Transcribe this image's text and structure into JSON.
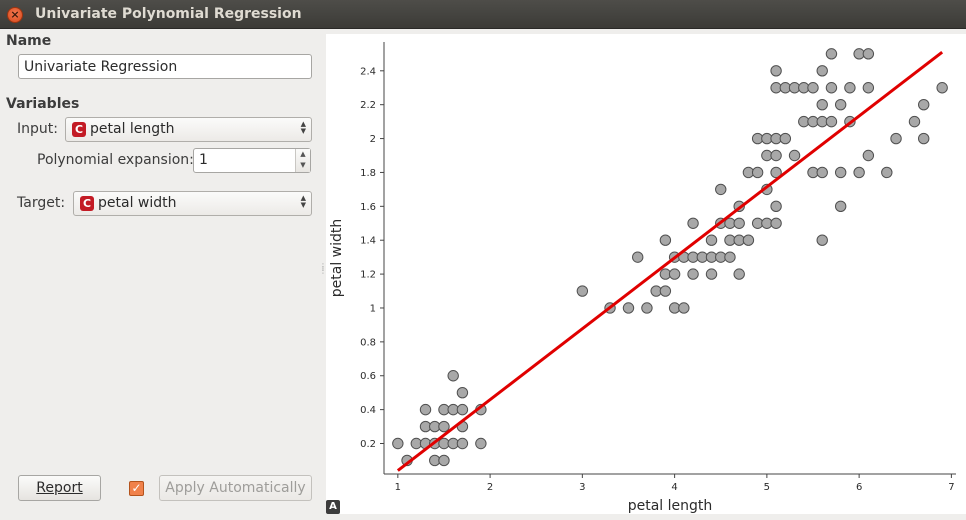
{
  "window": {
    "title": "Univariate Polynomial Regression"
  },
  "name_section": {
    "heading": "Name",
    "value": "Univariate Regression"
  },
  "variables_section": {
    "heading": "Variables",
    "input_label": "Input:",
    "input_badge": "C",
    "input_value": "petal length",
    "poly_label": "Polynomial expansion:",
    "poly_value": "1",
    "target_label": "Target:",
    "target_badge": "C",
    "target_value": "petal width"
  },
  "footer": {
    "report_label": "Report",
    "apply_label": "Apply Automatically",
    "apply_checked": true,
    "corner_icon": "A"
  },
  "chart_data": {
    "type": "scatter",
    "xlabel": "petal length",
    "ylabel": "petal width",
    "xlim": [
      0.85,
      7.05
    ],
    "ylim": [
      0.02,
      2.57
    ],
    "xticks": [
      1,
      2,
      3,
      4,
      5,
      6,
      7
    ],
    "yticks": [
      0.2,
      0.4,
      0.6,
      0.8,
      1,
      1.2,
      1.4,
      1.6,
      1.8,
      2,
      2.2,
      2.4
    ],
    "point_color": "#a8a8a8",
    "point_stroke": "#505050",
    "line_color": "#e00000",
    "regression_line": {
      "x": [
        1.0,
        6.9
      ],
      "y": [
        0.04,
        2.51
      ]
    },
    "points": [
      [
        1.0,
        0.2
      ],
      [
        1.1,
        0.1
      ],
      [
        1.2,
        0.2
      ],
      [
        1.3,
        0.2
      ],
      [
        1.3,
        0.3
      ],
      [
        1.3,
        0.4
      ],
      [
        1.4,
        0.2
      ],
      [
        1.4,
        0.1
      ],
      [
        1.4,
        0.3
      ],
      [
        1.5,
        0.2
      ],
      [
        1.5,
        0.1
      ],
      [
        1.5,
        0.4
      ],
      [
        1.5,
        0.3
      ],
      [
        1.6,
        0.2
      ],
      [
        1.6,
        0.4
      ],
      [
        1.6,
        0.6
      ],
      [
        1.7,
        0.2
      ],
      [
        1.7,
        0.3
      ],
      [
        1.7,
        0.4
      ],
      [
        1.7,
        0.5
      ],
      [
        1.9,
        0.2
      ],
      [
        1.9,
        0.4
      ],
      [
        3.0,
        1.1
      ],
      [
        3.3,
        1.0
      ],
      [
        3.5,
        1.0
      ],
      [
        3.6,
        1.3
      ],
      [
        3.7,
        1.0
      ],
      [
        3.8,
        1.1
      ],
      [
        3.9,
        1.1
      ],
      [
        3.9,
        1.2
      ],
      [
        3.9,
        1.4
      ],
      [
        4.0,
        1.0
      ],
      [
        4.0,
        1.2
      ],
      [
        4.0,
        1.3
      ],
      [
        4.1,
        1.0
      ],
      [
        4.1,
        1.3
      ],
      [
        4.2,
        1.2
      ],
      [
        4.2,
        1.3
      ],
      [
        4.2,
        1.5
      ],
      [
        4.3,
        1.3
      ],
      [
        4.4,
        1.2
      ],
      [
        4.4,
        1.3
      ],
      [
        4.4,
        1.4
      ],
      [
        4.5,
        1.3
      ],
      [
        4.5,
        1.5
      ],
      [
        4.5,
        1.7
      ],
      [
        4.6,
        1.3
      ],
      [
        4.6,
        1.4
      ],
      [
        4.6,
        1.5
      ],
      [
        4.7,
        1.2
      ],
      [
        4.7,
        1.4
      ],
      [
        4.7,
        1.5
      ],
      [
        4.7,
        1.6
      ],
      [
        4.8,
        1.8
      ],
      [
        4.8,
        1.4
      ],
      [
        4.9,
        1.5
      ],
      [
        4.9,
        1.8
      ],
      [
        4.9,
        2.0
      ],
      [
        5.0,
        1.7
      ],
      [
        5.0,
        1.5
      ],
      [
        5.0,
        2.0
      ],
      [
        5.0,
        1.9
      ],
      [
        5.1,
        1.5
      ],
      [
        5.1,
        1.6
      ],
      [
        5.1,
        1.8
      ],
      [
        5.1,
        1.9
      ],
      [
        5.1,
        2.0
      ],
      [
        5.1,
        2.3
      ],
      [
        5.1,
        2.4
      ],
      [
        5.2,
        2.0
      ],
      [
        5.2,
        2.3
      ],
      [
        5.3,
        1.9
      ],
      [
        5.3,
        2.3
      ],
      [
        5.4,
        2.1
      ],
      [
        5.4,
        2.3
      ],
      [
        5.5,
        1.8
      ],
      [
        5.5,
        2.1
      ],
      [
        5.5,
        2.3
      ],
      [
        5.6,
        1.8
      ],
      [
        5.6,
        1.4
      ],
      [
        5.6,
        2.1
      ],
      [
        5.6,
        2.2
      ],
      [
        5.6,
        2.4
      ],
      [
        5.7,
        2.1
      ],
      [
        5.7,
        2.3
      ],
      [
        5.7,
        2.5
      ],
      [
        5.8,
        1.6
      ],
      [
        5.8,
        1.8
      ],
      [
        5.8,
        2.2
      ],
      [
        5.9,
        2.1
      ],
      [
        5.9,
        2.3
      ],
      [
        6.0,
        1.8
      ],
      [
        6.0,
        2.5
      ],
      [
        6.1,
        1.9
      ],
      [
        6.1,
        2.3
      ],
      [
        6.1,
        2.5
      ],
      [
        6.3,
        1.8
      ],
      [
        6.4,
        2.0
      ],
      [
        6.6,
        2.1
      ],
      [
        6.7,
        2.0
      ],
      [
        6.7,
        2.2
      ],
      [
        6.9,
        2.3
      ]
    ]
  }
}
